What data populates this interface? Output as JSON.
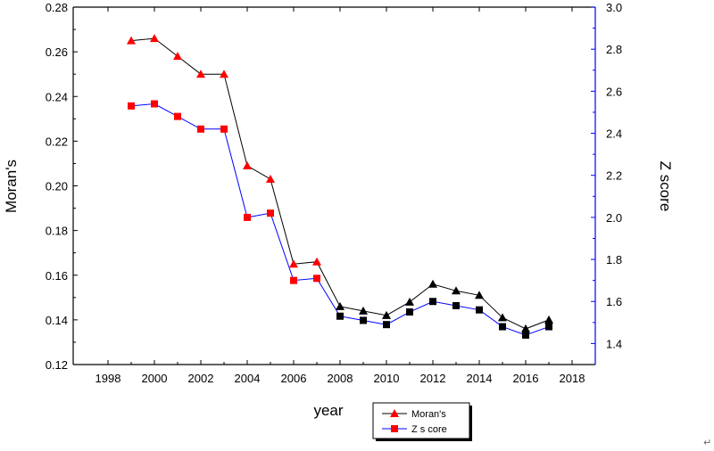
{
  "chart_data": {
    "type": "line",
    "xlabel": "year",
    "ylabel": "Moran's",
    "y2label": "Z score",
    "xlim": [
      1996.5,
      2019
    ],
    "ylim": [
      0.12,
      0.28
    ],
    "y2lim": [
      1.3,
      3.0
    ],
    "x_ticks": [
      1998,
      2000,
      2002,
      2004,
      2006,
      2008,
      2010,
      2012,
      2014,
      2016,
      2018
    ],
    "y_ticks": [
      0.12,
      0.14,
      0.16,
      0.18,
      0.2,
      0.22,
      0.24,
      0.26,
      0.28
    ],
    "y2_ticks": [
      1.4,
      1.6,
      1.8,
      2.0,
      2.2,
      2.4,
      2.6,
      2.8,
      3.0
    ],
    "grid": false,
    "legend_position": "bottom-center",
    "x": [
      1999,
      2000,
      2001,
      2002,
      2003,
      2004,
      2005,
      2006,
      2007,
      2008,
      2009,
      2010,
      2011,
      2012,
      2013,
      2014,
      2015,
      2016,
      2017
    ],
    "series": [
      {
        "name": "Moran's",
        "axis": "left",
        "line_color": "#000000",
        "marker": "triangle",
        "values": [
          0.265,
          0.266,
          0.258,
          0.25,
          0.25,
          0.209,
          0.203,
          0.165,
          0.166,
          0.146,
          0.144,
          0.142,
          0.148,
          0.156,
          0.153,
          0.151,
          0.141,
          0.136,
          0.14
        ]
      },
      {
        "name": "Z s core",
        "axis": "right",
        "line_color": "#0000ff",
        "marker": "square",
        "values": [
          2.53,
          2.54,
          2.48,
          2.42,
          2.42,
          2.0,
          2.02,
          1.7,
          1.71,
          1.53,
          1.51,
          1.49,
          1.55,
          1.6,
          1.58,
          1.56,
          1.48,
          1.44,
          1.48
        ]
      }
    ],
    "colors": {
      "left_axis": "#000000",
      "right_axis": "#0000ff",
      "marker_colors": {
        "1999": "#ff0000",
        "2000": "#ff0000",
        "2001": "#ff0000",
        "2002": "#ff0000",
        "2003": "#ff0000",
        "2004": "#ff0000",
        "2005": "#ff0000",
        "2006": "#ff0000",
        "2007": "#ff0000",
        "2008": "#000000",
        "2009": "#000000",
        "2010": "#000000",
        "2011": "#000000",
        "2012": "#000000",
        "2013": "#000000",
        "2014": "#000000",
        "2015": "#000000",
        "2016": "#000000",
        "2017": "#000000"
      }
    }
  },
  "trailing_mark": "↵"
}
